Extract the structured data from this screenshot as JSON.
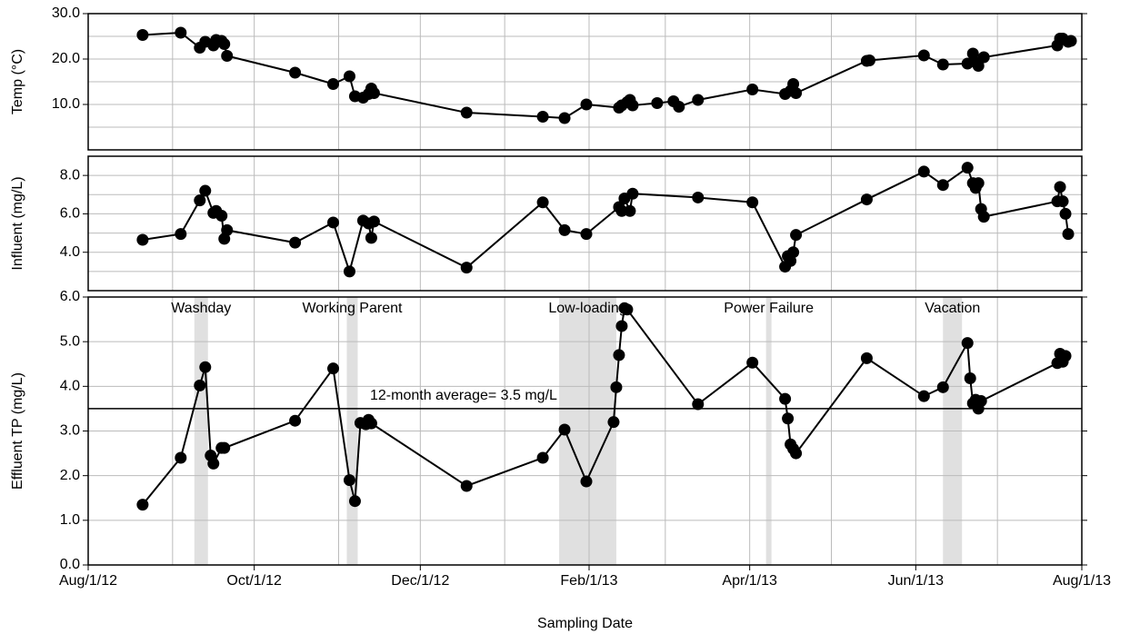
{
  "chart_data": [
    {
      "type": "line",
      "ylabel": "Temp (°C)",
      "color": "#000000",
      "grid": true,
      "xlim": [
        "2012-08-01",
        "2013-08-01"
      ],
      "ylim": [
        0,
        30
      ],
      "yticks": [
        {
          "value": 10,
          "label": "10.0"
        },
        {
          "value": 20,
          "label": "20.0"
        },
        {
          "value": 30,
          "label": "30.0"
        }
      ],
      "ygrid_minor": [
        5,
        15,
        25
      ],
      "x": [
        "2012-08-21",
        "2012-09-04",
        "2012-09-11",
        "2012-09-13",
        "2012-09-16",
        "2012-09-17",
        "2012-09-19",
        "2012-09-20",
        "2012-09-21",
        "2012-10-16",
        "2012-10-30",
        "2012-11-05",
        "2012-11-07",
        "2012-11-10",
        "2012-11-12",
        "2012-11-13",
        "2012-11-14",
        "2012-12-18",
        "2013-01-15",
        "2013-01-23",
        "2013-01-31",
        "2013-02-12",
        "2013-02-13",
        "2013-02-15",
        "2013-02-16",
        "2013-02-17",
        "2013-02-26",
        "2013-03-04",
        "2013-03-06",
        "2013-03-13",
        "2013-04-02",
        "2013-04-14",
        "2013-04-16",
        "2013-04-17",
        "2013-04-18",
        "2013-05-14",
        "2013-05-15",
        "2013-06-04",
        "2013-06-11",
        "2013-06-20",
        "2013-06-22",
        "2013-06-23",
        "2013-06-24",
        "2013-06-26",
        "2013-07-23",
        "2013-07-24",
        "2013-07-25",
        "2013-07-27",
        "2013-07-28"
      ],
      "values": [
        25.3,
        25.8,
        22.5,
        23.8,
        23.0,
        24.2,
        24.0,
        23.3,
        20.7,
        17.0,
        14.5,
        16.2,
        11.8,
        11.5,
        12.3,
        13.5,
        12.5,
        8.2,
        7.3,
        7.0,
        10.0,
        9.3,
        9.8,
        10.5,
        11.0,
        9.8,
        10.3,
        10.7,
        9.5,
        11.0,
        13.3,
        12.3,
        13.0,
        14.5,
        12.5,
        19.6,
        19.7,
        20.8,
        18.8,
        19.0,
        21.2,
        19.3,
        18.5,
        20.4,
        23.0,
        24.5,
        24.5,
        23.8,
        24.0
      ]
    },
    {
      "type": "line",
      "ylabel": "Influent (mg/L)",
      "color": "#000000",
      "grid": true,
      "xlim": [
        "2012-08-01",
        "2013-08-01"
      ],
      "ylim": [
        2,
        9
      ],
      "yticks": [
        {
          "value": 4,
          "label": "4.0"
        },
        {
          "value": 6,
          "label": "6.0"
        },
        {
          "value": 8,
          "label": "8.0"
        }
      ],
      "ygrid_minor": [
        3,
        5,
        7
      ],
      "x": [
        "2012-08-21",
        "2012-09-04",
        "2012-09-11",
        "2012-09-13",
        "2012-09-16",
        "2012-09-17",
        "2012-09-19",
        "2012-09-20",
        "2012-09-21",
        "2012-10-16",
        "2012-10-30",
        "2012-11-05",
        "2012-11-10",
        "2012-11-12",
        "2012-11-13",
        "2012-11-14",
        "2012-12-18",
        "2013-01-15",
        "2013-01-23",
        "2013-01-31",
        "2013-02-12",
        "2013-02-13",
        "2013-02-14",
        "2013-02-16",
        "2013-02-17",
        "2013-03-13",
        "2013-04-02",
        "2013-04-14",
        "2013-04-15",
        "2013-04-16",
        "2013-04-17",
        "2013-04-18",
        "2013-05-14",
        "2013-06-04",
        "2013-06-11",
        "2013-06-20",
        "2013-06-22",
        "2013-06-23",
        "2013-06-24",
        "2013-06-25",
        "2013-06-26",
        "2013-07-23",
        "2013-07-24",
        "2013-07-25",
        "2013-07-26",
        "2013-07-27"
      ],
      "values": [
        4.65,
        4.95,
        6.7,
        7.2,
        6.05,
        6.15,
        5.9,
        4.7,
        5.15,
        4.5,
        5.55,
        3.0,
        5.65,
        5.5,
        4.75,
        5.6,
        3.2,
        6.6,
        5.15,
        4.95,
        6.35,
        6.15,
        6.8,
        6.15,
        7.05,
        6.85,
        6.6,
        3.25,
        3.8,
        3.55,
        4.0,
        4.9,
        6.75,
        8.2,
        7.5,
        8.4,
        7.6,
        7.35,
        7.6,
        6.25,
        5.85,
        6.65,
        7.4,
        6.65,
        6.0,
        4.95
      ]
    },
    {
      "type": "line",
      "ylabel": "Effluent TP (mg/L)",
      "xlabel": "Sampling Date",
      "color": "#000000",
      "grid": true,
      "xlim": [
        "2012-08-01",
        "2013-08-01"
      ],
      "ylim": [
        0,
        6
      ],
      "yticks": [
        {
          "value": 0,
          "label": "0.0"
        },
        {
          "value": 1,
          "label": "1.0"
        },
        {
          "value": 2,
          "label": "2.0"
        },
        {
          "value": 3,
          "label": "3.0"
        },
        {
          "value": 4,
          "label": "4.0"
        },
        {
          "value": 5,
          "label": "5.0"
        },
        {
          "value": 6,
          "label": "6.0"
        }
      ],
      "xticks": [
        {
          "value": "2012-08-01",
          "label": "Aug/1/12"
        },
        {
          "value": "2012-10-01",
          "label": "Oct/1/12"
        },
        {
          "value": "2012-12-01",
          "label": "Dec/1/12"
        },
        {
          "value": "2013-02-01",
          "label": "Feb/1/13"
        },
        {
          "value": "2013-04-01",
          "label": "Apr/1/13"
        },
        {
          "value": "2013-06-01",
          "label": "Jun/1/13"
        },
        {
          "value": "2013-08-01",
          "label": "Aug/1/13"
        }
      ],
      "xgrid_minor": [
        "2012-09-01",
        "2012-11-01",
        "2013-01-01",
        "2013-03-01",
        "2013-05-01",
        "2013-07-01"
      ],
      "spans": [
        {
          "label": "Washday",
          "start": "2012-09-09",
          "end": "2012-09-14",
          "color": "#e0e0e0"
        },
        {
          "label": "Working Parent",
          "start": "2012-11-04",
          "end": "2012-11-08",
          "color": "#e0e0e0"
        },
        {
          "label": "Low-loading",
          "start": "2013-01-21",
          "end": "2013-02-11",
          "color": "#e0e0e0"
        },
        {
          "label": "Power Failure",
          "start": "2013-04-07",
          "end": "2013-04-09",
          "color": "#e0e0e0"
        },
        {
          "label": "Vacation",
          "start": "2013-06-11",
          "end": "2013-06-18",
          "color": "#e0e0e0"
        }
      ],
      "hline": {
        "value": 3.5,
        "label": "12-month average= 3.5 mg/L"
      },
      "x": [
        "2012-08-21",
        "2012-09-04",
        "2012-09-11",
        "2012-09-13",
        "2012-09-15",
        "2012-09-16",
        "2012-09-19",
        "2012-09-20",
        "2012-10-16",
        "2012-10-30",
        "2012-11-05",
        "2012-11-07",
        "2012-11-09",
        "2012-11-11",
        "2012-11-12",
        "2012-11-13",
        "2012-12-18",
        "2013-01-15",
        "2013-01-23",
        "2013-01-31",
        "2013-02-10",
        "2013-02-11",
        "2013-02-12",
        "2013-02-13",
        "2013-02-14",
        "2013-02-15",
        "2013-03-13",
        "2013-04-02",
        "2013-04-14",
        "2013-04-15",
        "2013-04-16",
        "2013-04-17",
        "2013-04-18",
        "2013-05-14",
        "2013-06-04",
        "2013-06-11",
        "2013-06-20",
        "2013-06-21",
        "2013-06-22",
        "2013-06-23",
        "2013-06-24",
        "2013-06-25",
        "2013-07-23",
        "2013-07-24",
        "2013-07-25",
        "2013-07-26"
      ],
      "values": [
        1.35,
        2.4,
        4.02,
        4.43,
        2.45,
        2.27,
        2.62,
        2.62,
        3.23,
        4.4,
        1.9,
        1.43,
        3.18,
        3.15,
        3.25,
        3.17,
        1.77,
        2.4,
        3.03,
        1.87,
        3.2,
        3.98,
        4.7,
        5.35,
        5.75,
        5.72,
        3.6,
        4.53,
        3.72,
        3.28,
        2.7,
        2.6,
        2.5,
        4.63,
        3.78,
        3.98,
        4.97,
        4.18,
        3.62,
        3.7,
        3.5,
        3.67,
        4.52,
        4.73,
        4.55,
        4.68
      ]
    }
  ]
}
